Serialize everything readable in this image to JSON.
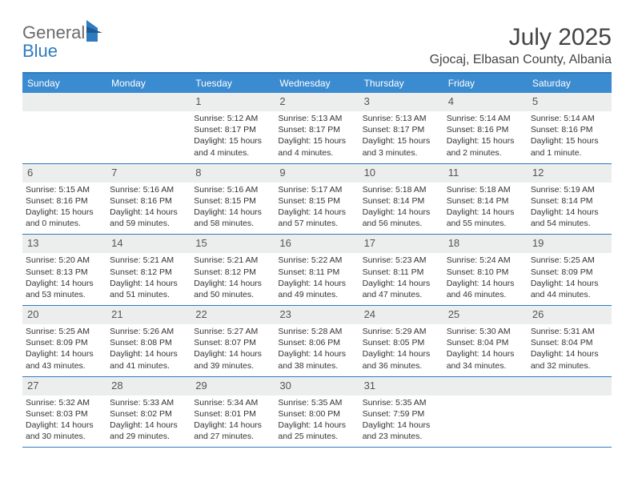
{
  "logo": {
    "general": "General",
    "blue": "Blue"
  },
  "title": "July 2025",
  "location": "Gjocaj, Elbasan County, Albania",
  "dayNames": [
    "Sunday",
    "Monday",
    "Tuesday",
    "Wednesday",
    "Thursday",
    "Friday",
    "Saturday"
  ],
  "colors": {
    "header_bg": "#3b8bd0",
    "border": "#2f7bbf",
    "daynum_bg": "#eceded",
    "text": "#333333"
  },
  "weeks": [
    [
      {
        "n": "",
        "sr": "",
        "ss": "",
        "dl": ""
      },
      {
        "n": "",
        "sr": "",
        "ss": "",
        "dl": ""
      },
      {
        "n": "1",
        "sr": "Sunrise: 5:12 AM",
        "ss": "Sunset: 8:17 PM",
        "dl": "Daylight: 15 hours and 4 minutes."
      },
      {
        "n": "2",
        "sr": "Sunrise: 5:13 AM",
        "ss": "Sunset: 8:17 PM",
        "dl": "Daylight: 15 hours and 4 minutes."
      },
      {
        "n": "3",
        "sr": "Sunrise: 5:13 AM",
        "ss": "Sunset: 8:17 PM",
        "dl": "Daylight: 15 hours and 3 minutes."
      },
      {
        "n": "4",
        "sr": "Sunrise: 5:14 AM",
        "ss": "Sunset: 8:16 PM",
        "dl": "Daylight: 15 hours and 2 minutes."
      },
      {
        "n": "5",
        "sr": "Sunrise: 5:14 AM",
        "ss": "Sunset: 8:16 PM",
        "dl": "Daylight: 15 hours and 1 minute."
      }
    ],
    [
      {
        "n": "6",
        "sr": "Sunrise: 5:15 AM",
        "ss": "Sunset: 8:16 PM",
        "dl": "Daylight: 15 hours and 0 minutes."
      },
      {
        "n": "7",
        "sr": "Sunrise: 5:16 AM",
        "ss": "Sunset: 8:16 PM",
        "dl": "Daylight: 14 hours and 59 minutes."
      },
      {
        "n": "8",
        "sr": "Sunrise: 5:16 AM",
        "ss": "Sunset: 8:15 PM",
        "dl": "Daylight: 14 hours and 58 minutes."
      },
      {
        "n": "9",
        "sr": "Sunrise: 5:17 AM",
        "ss": "Sunset: 8:15 PM",
        "dl": "Daylight: 14 hours and 57 minutes."
      },
      {
        "n": "10",
        "sr": "Sunrise: 5:18 AM",
        "ss": "Sunset: 8:14 PM",
        "dl": "Daylight: 14 hours and 56 minutes."
      },
      {
        "n": "11",
        "sr": "Sunrise: 5:18 AM",
        "ss": "Sunset: 8:14 PM",
        "dl": "Daylight: 14 hours and 55 minutes."
      },
      {
        "n": "12",
        "sr": "Sunrise: 5:19 AM",
        "ss": "Sunset: 8:14 PM",
        "dl": "Daylight: 14 hours and 54 minutes."
      }
    ],
    [
      {
        "n": "13",
        "sr": "Sunrise: 5:20 AM",
        "ss": "Sunset: 8:13 PM",
        "dl": "Daylight: 14 hours and 53 minutes."
      },
      {
        "n": "14",
        "sr": "Sunrise: 5:21 AM",
        "ss": "Sunset: 8:12 PM",
        "dl": "Daylight: 14 hours and 51 minutes."
      },
      {
        "n": "15",
        "sr": "Sunrise: 5:21 AM",
        "ss": "Sunset: 8:12 PM",
        "dl": "Daylight: 14 hours and 50 minutes."
      },
      {
        "n": "16",
        "sr": "Sunrise: 5:22 AM",
        "ss": "Sunset: 8:11 PM",
        "dl": "Daylight: 14 hours and 49 minutes."
      },
      {
        "n": "17",
        "sr": "Sunrise: 5:23 AM",
        "ss": "Sunset: 8:11 PM",
        "dl": "Daylight: 14 hours and 47 minutes."
      },
      {
        "n": "18",
        "sr": "Sunrise: 5:24 AM",
        "ss": "Sunset: 8:10 PM",
        "dl": "Daylight: 14 hours and 46 minutes."
      },
      {
        "n": "19",
        "sr": "Sunrise: 5:25 AM",
        "ss": "Sunset: 8:09 PM",
        "dl": "Daylight: 14 hours and 44 minutes."
      }
    ],
    [
      {
        "n": "20",
        "sr": "Sunrise: 5:25 AM",
        "ss": "Sunset: 8:09 PM",
        "dl": "Daylight: 14 hours and 43 minutes."
      },
      {
        "n": "21",
        "sr": "Sunrise: 5:26 AM",
        "ss": "Sunset: 8:08 PM",
        "dl": "Daylight: 14 hours and 41 minutes."
      },
      {
        "n": "22",
        "sr": "Sunrise: 5:27 AM",
        "ss": "Sunset: 8:07 PM",
        "dl": "Daylight: 14 hours and 39 minutes."
      },
      {
        "n": "23",
        "sr": "Sunrise: 5:28 AM",
        "ss": "Sunset: 8:06 PM",
        "dl": "Daylight: 14 hours and 38 minutes."
      },
      {
        "n": "24",
        "sr": "Sunrise: 5:29 AM",
        "ss": "Sunset: 8:05 PM",
        "dl": "Daylight: 14 hours and 36 minutes."
      },
      {
        "n": "25",
        "sr": "Sunrise: 5:30 AM",
        "ss": "Sunset: 8:04 PM",
        "dl": "Daylight: 14 hours and 34 minutes."
      },
      {
        "n": "26",
        "sr": "Sunrise: 5:31 AM",
        "ss": "Sunset: 8:04 PM",
        "dl": "Daylight: 14 hours and 32 minutes."
      }
    ],
    [
      {
        "n": "27",
        "sr": "Sunrise: 5:32 AM",
        "ss": "Sunset: 8:03 PM",
        "dl": "Daylight: 14 hours and 30 minutes."
      },
      {
        "n": "28",
        "sr": "Sunrise: 5:33 AM",
        "ss": "Sunset: 8:02 PM",
        "dl": "Daylight: 14 hours and 29 minutes."
      },
      {
        "n": "29",
        "sr": "Sunrise: 5:34 AM",
        "ss": "Sunset: 8:01 PM",
        "dl": "Daylight: 14 hours and 27 minutes."
      },
      {
        "n": "30",
        "sr": "Sunrise: 5:35 AM",
        "ss": "Sunset: 8:00 PM",
        "dl": "Daylight: 14 hours and 25 minutes."
      },
      {
        "n": "31",
        "sr": "Sunrise: 5:35 AM",
        "ss": "Sunset: 7:59 PM",
        "dl": "Daylight: 14 hours and 23 minutes."
      },
      {
        "n": "",
        "sr": "",
        "ss": "",
        "dl": ""
      },
      {
        "n": "",
        "sr": "",
        "ss": "",
        "dl": ""
      }
    ]
  ]
}
